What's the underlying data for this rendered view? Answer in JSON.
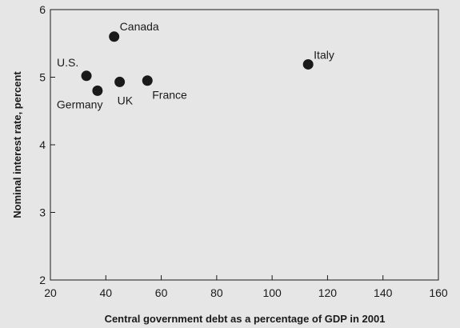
{
  "chart_data": {
    "type": "scatter",
    "title": "",
    "xlabel": "Central government debt as a percentage of GDP in 2001",
    "ylabel": "Nominal interest rate, percent",
    "xlim": [
      20,
      160
    ],
    "ylim": [
      2,
      6
    ],
    "xticks": [
      20,
      40,
      60,
      80,
      100,
      120,
      140,
      160
    ],
    "yticks": [
      2,
      3,
      4,
      5,
      6
    ],
    "grid": false,
    "legend": "none",
    "marker_color": "#1a1a1a",
    "points": [
      {
        "label": "U.S.",
        "x": 33,
        "y": 5.02
      },
      {
        "label": "Germany",
        "x": 37,
        "y": 4.8
      },
      {
        "label": "Canada",
        "x": 43,
        "y": 5.6
      },
      {
        "label": "UK",
        "x": 45,
        "y": 4.93
      },
      {
        "label": "France",
        "x": 55,
        "y": 4.95
      },
      {
        "label": "Italy",
        "x": 113,
        "y": 5.19
      }
    ]
  }
}
